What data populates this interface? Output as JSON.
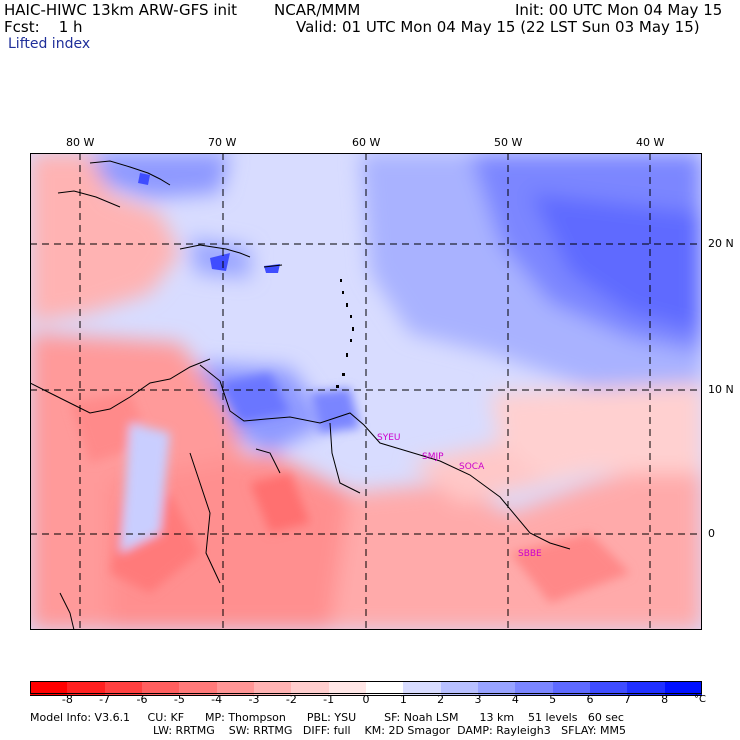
{
  "header": {
    "title": "HAIC-HIWC 13km ARW-GFS init",
    "org": "NCAR/MMM",
    "init": "Init: 00 UTC Mon 04 May 15",
    "fcst": "Fcst:    1 h",
    "valid": "Valid: 01 UTC Mon 04 May 15 (22 LST Sun 03 May 15)",
    "field": "Lifted index"
  },
  "map": {
    "lon_labels": [
      "80 W",
      "70 W",
      "60 W",
      "50 W",
      "40 W"
    ],
    "lat_labels": [
      "20 N",
      "10 N",
      "0"
    ],
    "sites": [
      "SYEU",
      "SMJP",
      "SOCA",
      "SBBE"
    ]
  },
  "colorbar": {
    "ticks": [
      "-8",
      "-7",
      "-6",
      "-5",
      "-4",
      "-3",
      "-2",
      "-1",
      "0",
      "1",
      "2",
      "3",
      "4",
      "5",
      "6",
      "7",
      "8"
    ],
    "unit": "°C",
    "colors": [
      "#ff0000",
      "#ff2020",
      "#ff4040",
      "#ff5f5f",
      "#ff7a7a",
      "#ff9696",
      "#ffb3b3",
      "#ffcece",
      "#ffe6e6",
      "#ffffff",
      "#d8dcff",
      "#b8c0ff",
      "#98a3ff",
      "#7b86ff",
      "#5e6aff",
      "#3f4dff",
      "#2030ff",
      "#0010ff"
    ]
  },
  "model_info": {
    "line1": "Model Info: V3.6.1     CU: KF      MP: Thompson      PBL: YSU        SF: Noah LSM      13 km    51 levels   60 sec",
    "line2": "LW: RRTMG    SW: RRTMG   DIFF: full    KM: 2D Smagor  DAMP: Rayleigh3   SFLAY: MM5"
  }
}
